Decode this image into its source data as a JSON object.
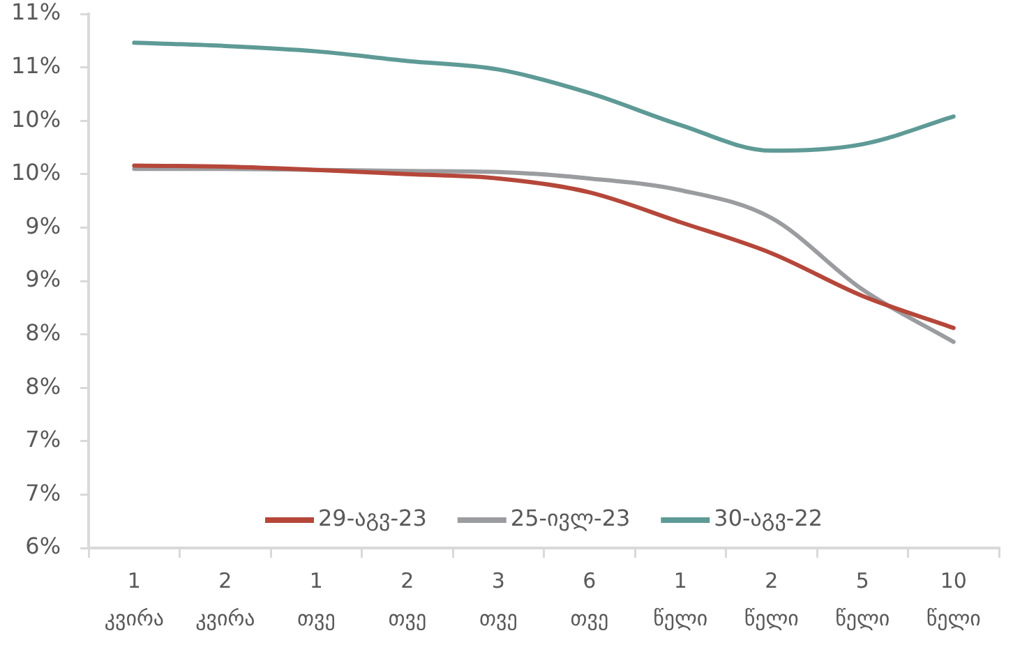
{
  "chart_data": {
    "type": "line",
    "categories": [
      "1\nკვირა",
      "2\nკვირა",
      "1\nთვე",
      "2\nთვე",
      "3\nთვე",
      "6\nთვე",
      "1\nწელი",
      "2\nწელი",
      "5\nწელი",
      "10\nწელი"
    ],
    "series": [
      {
        "name": "29-აგვ-23",
        "color": "#b5473a",
        "values": [
          9.58,
          9.57,
          9.54,
          9.5,
          9.46,
          9.33,
          9.05,
          8.76,
          8.36,
          8.06
        ]
      },
      {
        "name": "25-ივლ-23",
        "color": "#9b9c9f",
        "values": [
          9.55,
          9.55,
          9.54,
          9.53,
          9.52,
          9.46,
          9.35,
          9.09,
          8.42,
          7.93
        ]
      },
      {
        "name": "30-აგვ-22",
        "color": "#5e9a96",
        "values": [
          10.73,
          10.7,
          10.65,
          10.56,
          10.48,
          10.26,
          9.96,
          9.72,
          9.78,
          10.04
        ]
      }
    ],
    "ylim": [
      6,
      11
    ],
    "yticks": [
      {
        "value": 6,
        "label": "6%"
      },
      {
        "value": 6.5,
        "label": "7%"
      },
      {
        "value": 7,
        "label": "7%"
      },
      {
        "value": 7.5,
        "label": "8%"
      },
      {
        "value": 8,
        "label": "8%"
      },
      {
        "value": 8.5,
        "label": "9%"
      },
      {
        "value": 9,
        "label": "9%"
      },
      {
        "value": 9.5,
        "label": "10%"
      },
      {
        "value": 10,
        "label": "10%"
      },
      {
        "value": 10.5,
        "label": "11%"
      },
      {
        "value": 11,
        "label": "11%"
      }
    ],
    "grid": false,
    "legend": "bottom",
    "marker": "none"
  }
}
